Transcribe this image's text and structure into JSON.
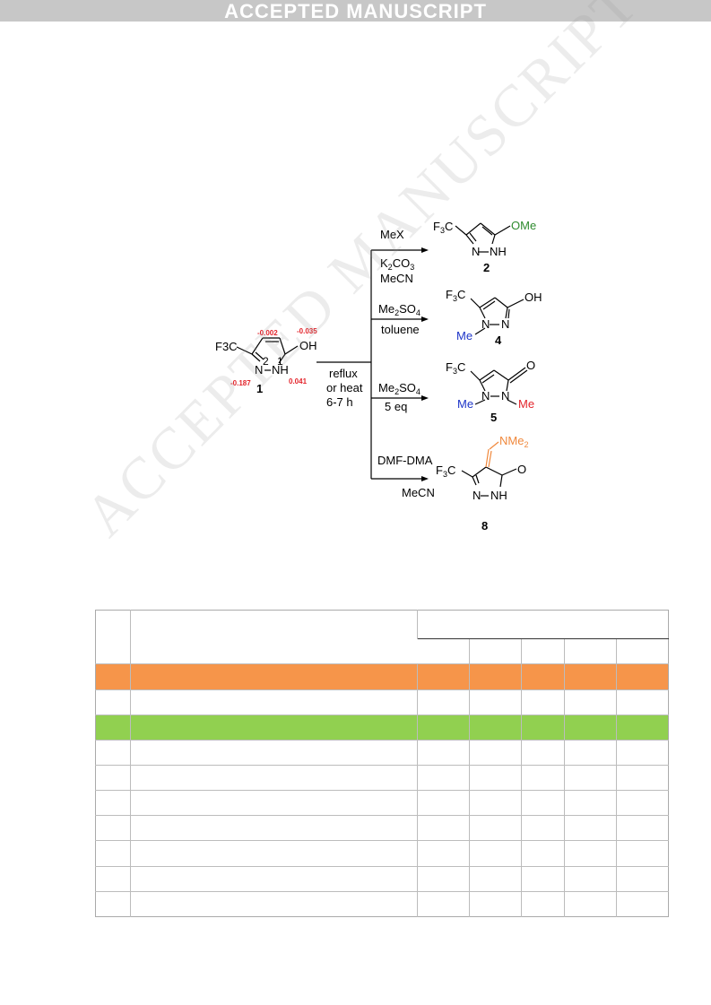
{
  "banner": "ACCEPTED MANUSCRIPT",
  "watermark": "ACCEPTED MANUSCRIPT",
  "scheme": {
    "substrate": {
      "label": "1",
      "cf3": "F3C",
      "oh": "OH",
      "n2": "N",
      "nh": "NH",
      "pos2": "2",
      "pos1": "1"
    },
    "charges": {
      "c4": "-0.002",
      "o": "-0.035",
      "n2": "-0.187",
      "n1": "0.041"
    },
    "center_conditions": [
      "reflux",
      "or heat",
      "6-7 h"
    ],
    "branches": [
      {
        "reagents": [
          "MeX",
          "K2CO3",
          "MeCN"
        ],
        "product": "2",
        "groups": [
          "F3C",
          "OMe",
          "N",
          "NH"
        ]
      },
      {
        "reagents": [
          "Me2SO4",
          "toluene"
        ],
        "product": "4",
        "groups": [
          "F3C",
          "OH",
          "N",
          "N",
          "Me"
        ]
      },
      {
        "reagents": [
          "Me2SO4",
          "5 eq"
        ],
        "product": "5",
        "groups": [
          "F3C",
          "O",
          "N",
          "N",
          "Me",
          "Me"
        ]
      },
      {
        "reagents": [
          "DMF-DMA",
          "MeCN"
        ],
        "product": "8",
        "groups": [
          "F3C",
          "O",
          "N",
          "NH",
          "NMe2"
        ]
      }
    ]
  },
  "colors": {
    "green": "#2e8b2e",
    "blue": "#1e35c8",
    "red": "#e3242b",
    "orange": "#f0883c",
    "row_orange": "#f6954a",
    "row_green": "#91d050"
  },
  "table": {
    "data_rows": 10,
    "highlighted_rows": {
      "orange": 1,
      "green": 3
    }
  }
}
